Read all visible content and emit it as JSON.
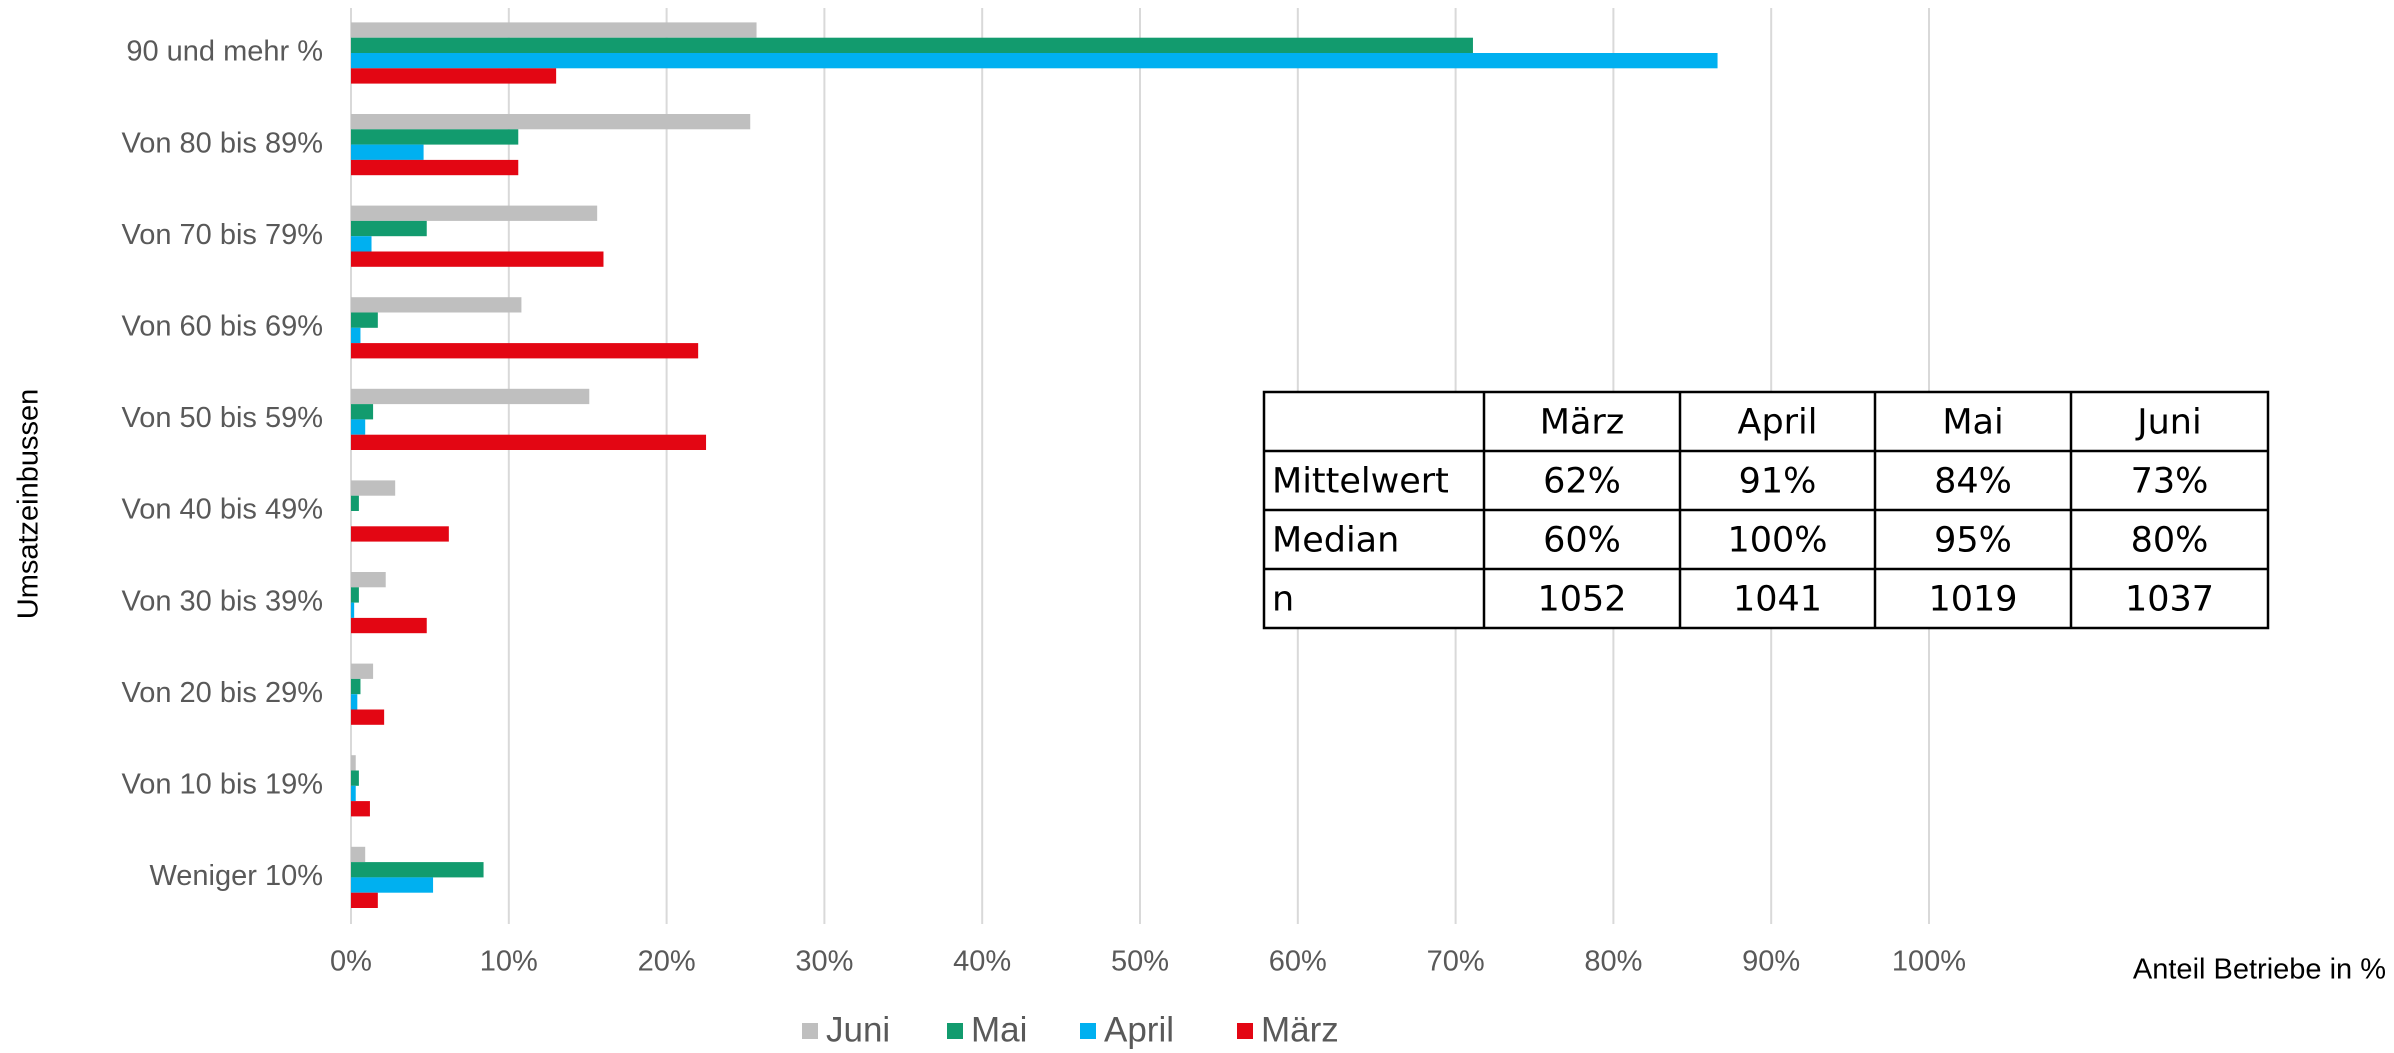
{
  "chart_data": {
    "type": "hbar",
    "xlabel": "Anteil Betriebe in %",
    "ylabel": "Umsatzeinbussen",
    "categories": [
      "90 und mehr %",
      "Von 80 bis 89%",
      "Von 70 bis 79%",
      "Von 60 bis 69%",
      "Von 50 bis 59%",
      "Von 40 bis 49%",
      "Von 30 bis 39%",
      "Von 20 bis 29%",
      "Von 10 bis 19%",
      "Weniger 10%"
    ],
    "series": [
      {
        "name": "Juni",
        "color": "#bfbfbf",
        "values": [
          25.7,
          25.3,
          15.6,
          10.8,
          15.1,
          2.8,
          2.2,
          1.4,
          0.3,
          0.9
        ]
      },
      {
        "name": "Mai",
        "color": "#129b6e",
        "values": [
          71.1,
          10.6,
          4.8,
          1.7,
          1.4,
          0.5,
          0.5,
          0.6,
          0.5,
          8.4
        ]
      },
      {
        "name": "April",
        "color": "#00b0f0",
        "values": [
          86.6,
          4.6,
          1.3,
          0.6,
          0.9,
          0,
          0.2,
          0.4,
          0.3,
          5.2
        ]
      },
      {
        "name": "März",
        "color": "#e30613",
        "values": [
          13,
          10.6,
          16,
          22,
          22.5,
          6.2,
          4.8,
          2.1,
          1.2,
          1.7
        ]
      }
    ],
    "xlim": [
      0,
      100
    ],
    "xticks": [
      {
        "value": 0,
        "label": "0%"
      },
      {
        "value": 10,
        "label": "10%"
      },
      {
        "value": 20,
        "label": "20%"
      },
      {
        "value": 30,
        "label": "30%"
      },
      {
        "value": 40,
        "label": "40%"
      },
      {
        "value": 50,
        "label": "50%"
      },
      {
        "value": 60,
        "label": "60%"
      },
      {
        "value": 70,
        "label": "70%"
      },
      {
        "value": 80,
        "label": "80%"
      },
      {
        "value": 90,
        "label": "90%"
      },
      {
        "value": 100,
        "label": "100%"
      }
    ],
    "grid": true,
    "legend": "bottom",
    "table": {
      "columns": [
        "März",
        "April",
        "Mai",
        "Juni"
      ],
      "rows": [
        {
          "label": "Mittelwert",
          "cells": [
            "62%",
            "91%",
            "84%",
            "73%"
          ]
        },
        {
          "label": "Median",
          "cells": [
            "60%",
            "100%",
            "95%",
            "80%"
          ]
        },
        {
          "label": "n",
          "cells": [
            "1052",
            "1041",
            "1019",
            "1037"
          ]
        }
      ]
    }
  }
}
